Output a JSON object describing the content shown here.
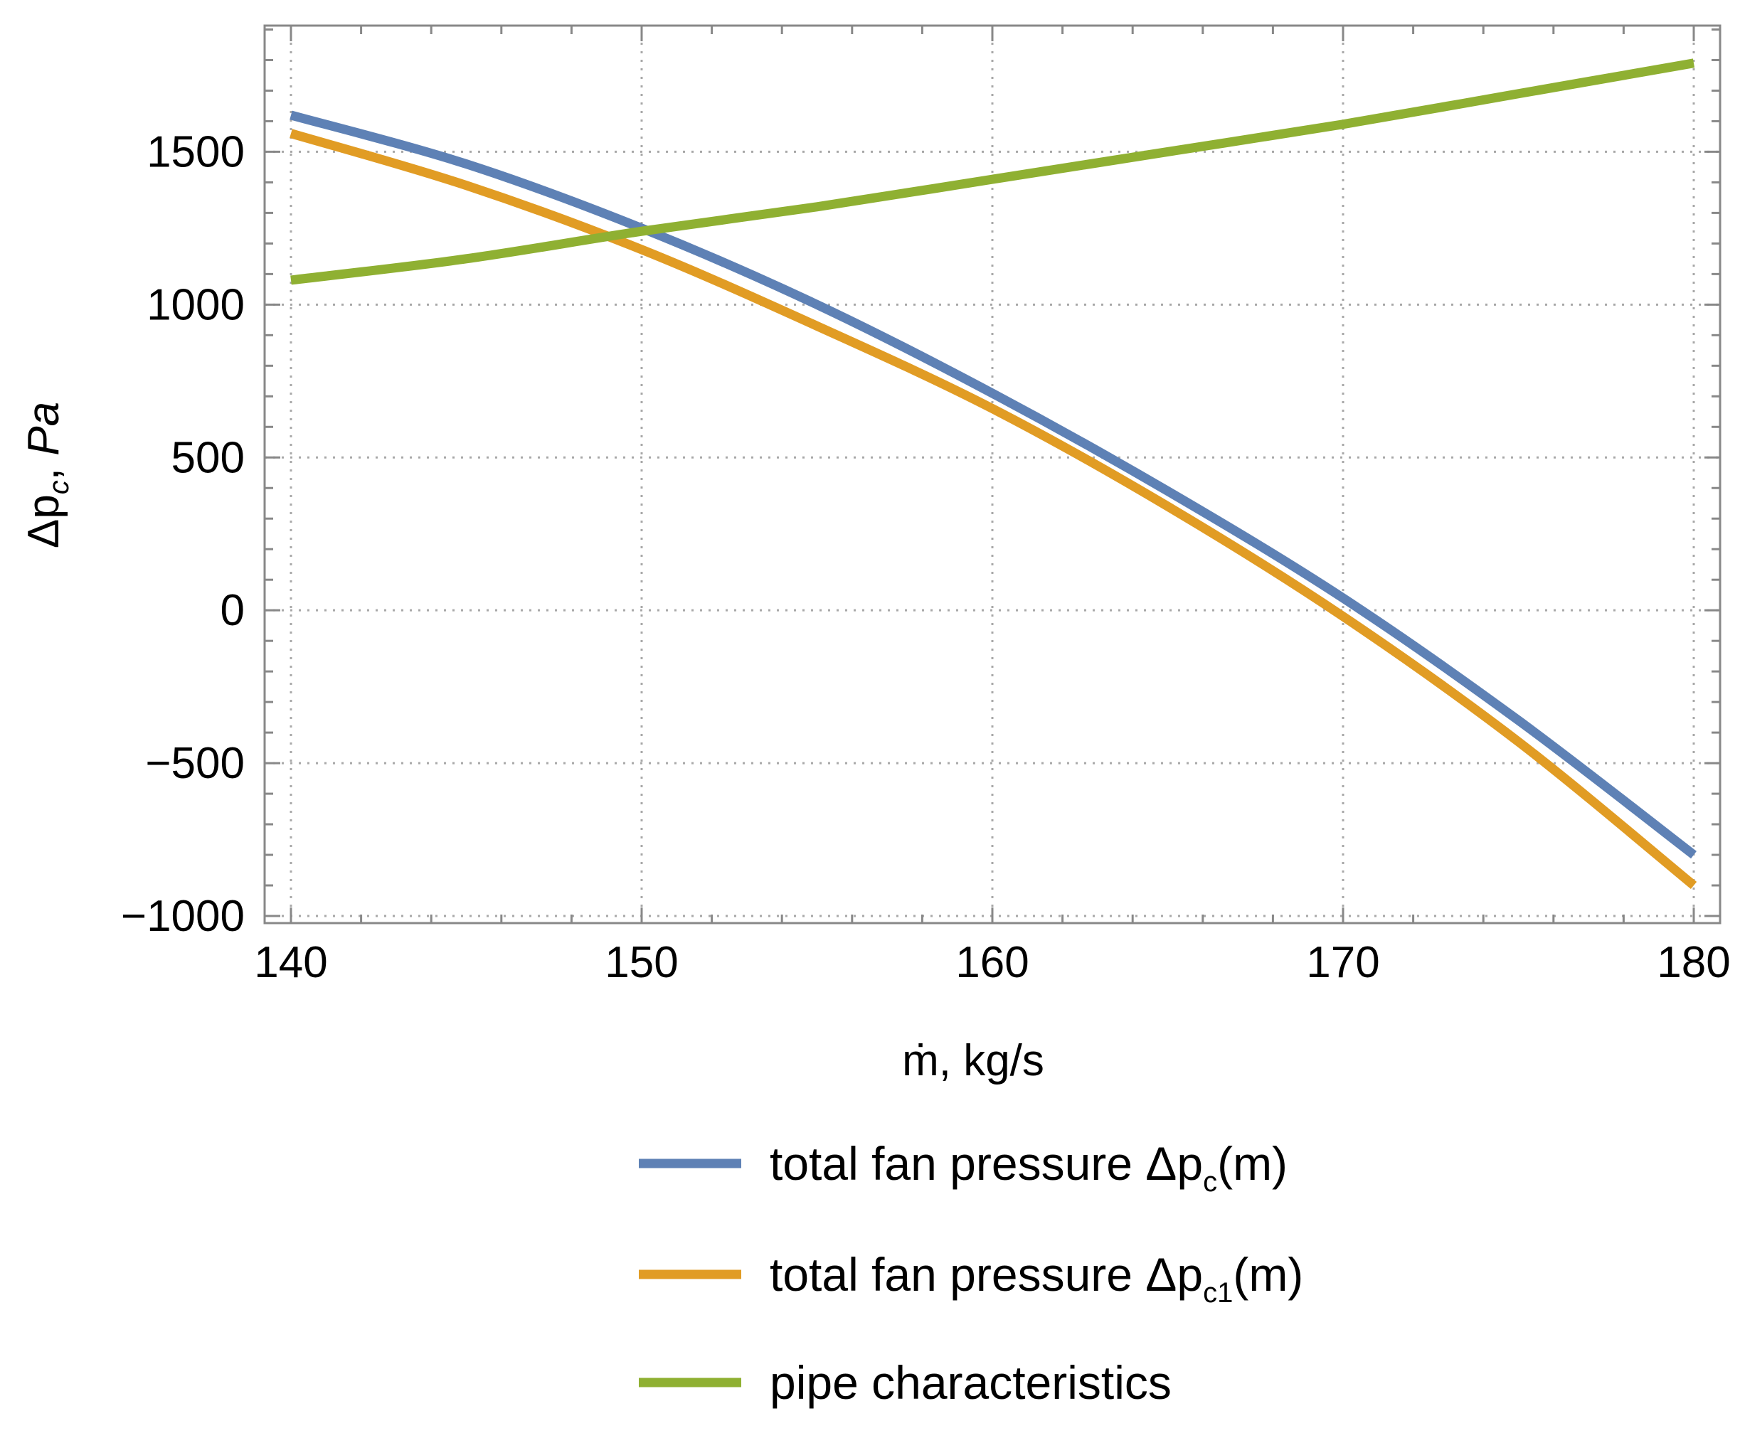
{
  "chart_data": {
    "type": "line",
    "xlabel": "ṁ, kg/s",
    "ylabel": {
      "main": "Δp",
      "sub": "c",
      "unit": "Pa"
    },
    "xlim": [
      140,
      180
    ],
    "ylim": [
      -1000,
      1950
    ],
    "x_ticks": [
      140,
      150,
      160,
      170,
      180
    ],
    "y_ticks": [
      -1000,
      -500,
      0,
      500,
      1000,
      1500
    ],
    "y_tick_labels": [
      "−1000",
      "−500",
      "0",
      "500",
      "1000",
      "1500"
    ],
    "x_minor_step": 2,
    "y_minor_step": 100,
    "grid": true,
    "x": [
      140,
      145,
      150,
      155,
      160,
      165,
      170,
      175,
      180
    ],
    "series": [
      {
        "name": "total fan pressure Δpc(m)",
        "legend": {
          "prefix": "total fan pressure Δp",
          "sub": "c",
          "suffix": "(m)"
        },
        "color": "#5e81b5",
        "values": [
          1620,
          1460,
          1250,
          1000,
          710,
          390,
          40,
          -360,
          -800
        ]
      },
      {
        "name": "total fan pressure Δpc1(m)",
        "legend": {
          "prefix": "total fan pressure Δp",
          "sub": "c1",
          "suffix": "(m)"
        },
        "color": "#e19c24",
        "values": [
          1560,
          1390,
          1180,
          930,
          660,
          340,
          -20,
          -430,
          -900
        ]
      },
      {
        "name": "pipe characteristics",
        "legend": {
          "prefix": "pipe characteristics",
          "sub": "",
          "suffix": ""
        },
        "color": "#8fb032",
        "values": [
          1080,
          1150,
          1240,
          1320,
          1410,
          1500,
          1590,
          1690,
          1790
        ]
      }
    ],
    "legend_position": "bottom"
  }
}
